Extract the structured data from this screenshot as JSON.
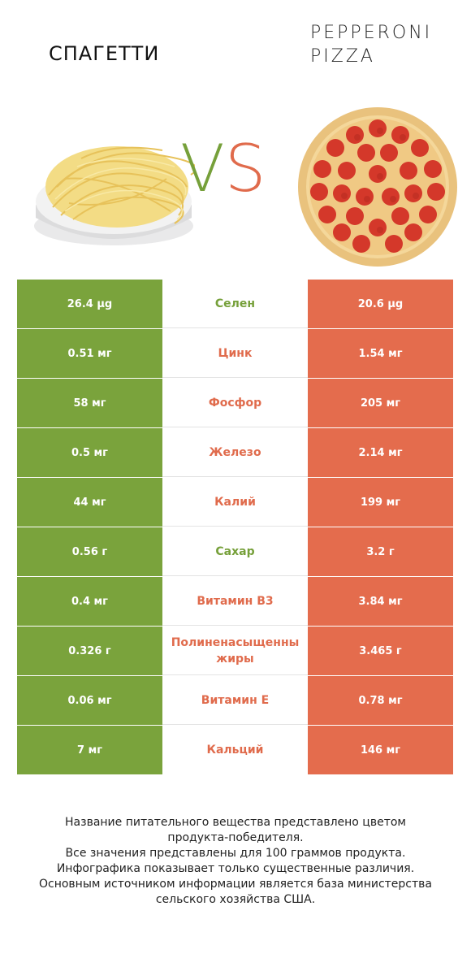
{
  "header": {
    "left_title": "СПАГЕТТИ",
    "right_title": "PEPPERONI PIZZA",
    "vs_v": "V",
    "vs_s": "S"
  },
  "colors": {
    "left_accent": "#7aa33c",
    "right_accent": "#e46c4d"
  },
  "rows": [
    {
      "left": "26.4 µg",
      "nutrient": "Селен",
      "right": "20.6 µg",
      "winner": "left"
    },
    {
      "left": "0.51 мг",
      "nutrient": "Цинк",
      "right": "1.54 мг",
      "winner": "right"
    },
    {
      "left": "58 мг",
      "nutrient": "Фосфор",
      "right": "205 мг",
      "winner": "right"
    },
    {
      "left": "0.5 мг",
      "nutrient": "Железо",
      "right": "2.14 мг",
      "winner": "right"
    },
    {
      "left": "44 мг",
      "nutrient": "Калий",
      "right": "199 мг",
      "winner": "right"
    },
    {
      "left": "0.56 г",
      "nutrient": "Сахар",
      "right": "3.2 г",
      "winner": "left"
    },
    {
      "left": "0.4 мг",
      "nutrient": "Витамин B3",
      "right": "3.84 мг",
      "winner": "right"
    },
    {
      "left": "0.326 г",
      "nutrient": "Полиненасыщенны жиры",
      "right": "3.465 г",
      "winner": "right"
    },
    {
      "left": "0.06 мг",
      "nutrient": "Витамин E",
      "right": "0.78 мг",
      "winner": "right"
    },
    {
      "left": "7 мг",
      "nutrient": "Кальций",
      "right": "146 мг",
      "winner": "right"
    }
  ],
  "footer": {
    "line1": "Название питательного вещества представлено цветом",
    "line2": "продукта-победителя.",
    "line3": "Все значения представлены для 100 граммов продукта.",
    "line4": "Инфографика показывает только существенные различия.",
    "line5": "Основным источником информации является база министерства",
    "line6": "сельского хозяйства США."
  }
}
